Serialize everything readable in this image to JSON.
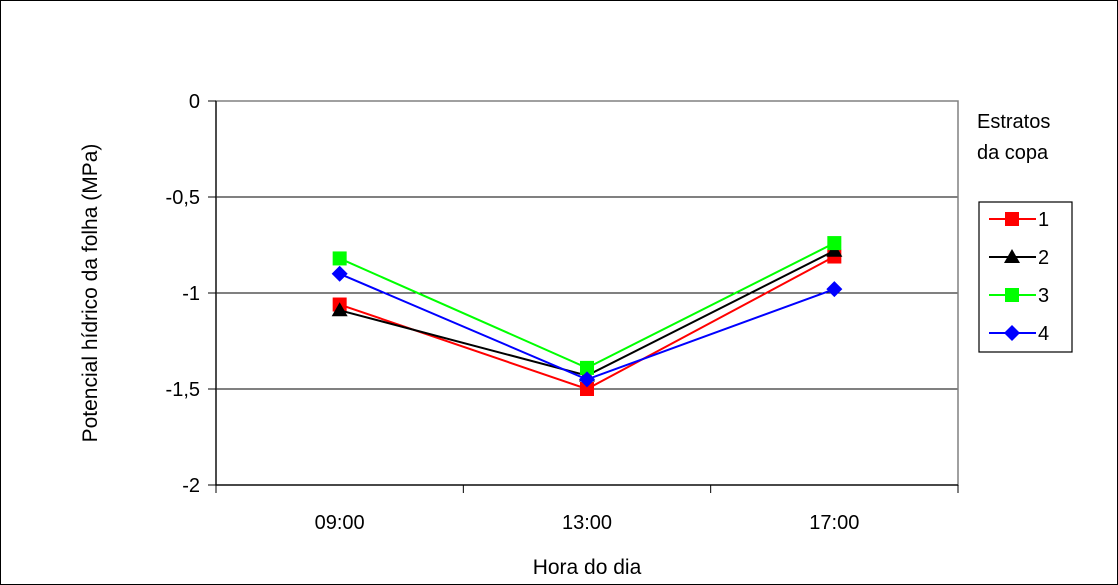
{
  "chart_data": {
    "type": "line",
    "title": "",
    "xlabel": "Hora do dia",
    "ylabel": "Potencial hídrico da folha (MPa)",
    "categories": [
      "09:00",
      "13:00",
      "17:00"
    ],
    "ylim": [
      -2,
      0
    ],
    "yticks": [
      0,
      -0.5,
      -1,
      -1.5,
      -2
    ],
    "ytick_labels": [
      "0",
      "-0,5",
      "-1",
      "-1,5",
      "-2"
    ],
    "grid": true,
    "legend": {
      "title_lines": [
        "Estratos",
        "da copa"
      ],
      "placement": "right"
    },
    "series": [
      {
        "name": "1",
        "values": [
          -1.06,
          -1.5,
          -0.81
        ],
        "color": "#ff0000",
        "marker": "square"
      },
      {
        "name": "2",
        "values": [
          -1.09,
          -1.43,
          -0.78
        ],
        "color": "#000000",
        "marker": "triangle"
      },
      {
        "name": "3",
        "values": [
          -0.82,
          -1.39,
          -0.74
        ],
        "color": "#00ff00",
        "marker": "square"
      },
      {
        "name": "4",
        "values": [
          -0.9,
          -1.45,
          -0.98
        ],
        "color": "#0000ff",
        "marker": "diamond"
      }
    ]
  }
}
